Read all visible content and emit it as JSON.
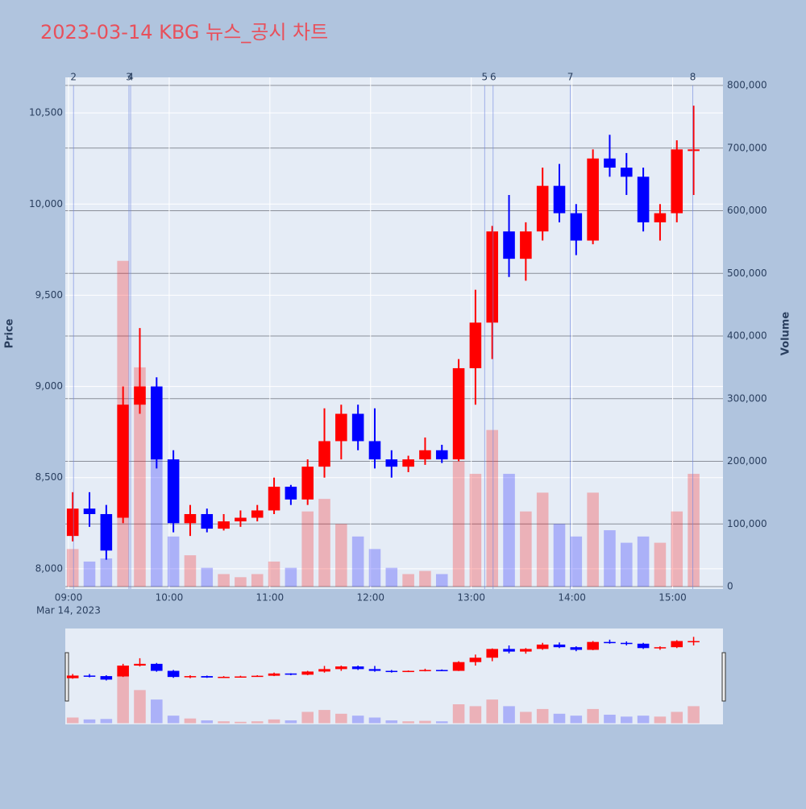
{
  "chart_data": {
    "type": "candlestick",
    "title": "2023-03-14 KBG 뉴스_공시 차트",
    "y_label": "Price",
    "y2_label": "Volume",
    "x_date_label": "Mar 14, 2023",
    "up_color": "#ff0000",
    "down_color": "#0000ff",
    "x": [
      "09:00",
      "09:10",
      "09:20",
      "09:30",
      "09:40",
      "09:50",
      "10:00",
      "10:10",
      "10:20",
      "10:30",
      "10:40",
      "10:50",
      "11:00",
      "11:10",
      "11:20",
      "11:30",
      "11:40",
      "11:50",
      "12:00",
      "12:10",
      "12:20",
      "12:30",
      "12:40",
      "12:50",
      "13:00",
      "13:10",
      "13:20",
      "13:30",
      "13:40",
      "13:50",
      "14:00",
      "14:10",
      "14:20",
      "14:30",
      "14:40",
      "14:50",
      "15:00",
      "15:10"
    ],
    "open": [
      8180,
      8330,
      8300,
      8280,
      8900,
      9000,
      8600,
      8250,
      8300,
      8220,
      8260,
      8280,
      8320,
      8450,
      8380,
      8560,
      8700,
      8850,
      8700,
      8600,
      8560,
      8600,
      8650,
      8600,
      9100,
      9350,
      9850,
      9700,
      9850,
      10100,
      9950,
      9800,
      10250,
      10200,
      10150,
      9900,
      9950,
      10300
    ],
    "high": [
      8420,
      8420,
      8350,
      9000,
      9320,
      9050,
      8650,
      8350,
      8330,
      8300,
      8320,
      8350,
      8500,
      8460,
      8600,
      8880,
      8900,
      8900,
      8880,
      8650,
      8620,
      8720,
      8680,
      9150,
      9530,
      9880,
      10050,
      9900,
      10200,
      10220,
      10000,
      10300,
      10380,
      10280,
      10200,
      10000,
      10350,
      10540
    ],
    "low": [
      8150,
      8230,
      8050,
      8250,
      8850,
      8550,
      8200,
      8180,
      8200,
      8210,
      8230,
      8260,
      8300,
      8350,
      8350,
      8500,
      8600,
      8650,
      8550,
      8500,
      8530,
      8570,
      8580,
      8590,
      8900,
      9150,
      9600,
      9580,
      9800,
      9900,
      9720,
      9780,
      10150,
      10050,
      9850,
      9800,
      9900,
      10050
    ],
    "close": [
      8330,
      8300,
      8100,
      8900,
      9000,
      8600,
      8250,
      8300,
      8220,
      8260,
      8280,
      8320,
      8450,
      8380,
      8560,
      8700,
      8850,
      8700,
      8600,
      8560,
      8600,
      8650,
      8600,
      9100,
      9350,
      9850,
      9700,
      9850,
      10100,
      9950,
      9800,
      10250,
      10200,
      10150,
      9900,
      9950,
      10300,
      10300
    ],
    "volume": [
      60000,
      40000,
      45000,
      520000,
      350000,
      250000,
      80000,
      50000,
      30000,
      20000,
      15000,
      20000,
      40000,
      30000,
      120000,
      140000,
      100000,
      80000,
      60000,
      30000,
      20000,
      25000,
      20000,
      200000,
      180000,
      250000,
      180000,
      120000,
      150000,
      100000,
      80000,
      150000,
      90000,
      70000,
      80000,
      70000,
      120000,
      180000
    ],
    "xlim": [
      "09:00",
      "15:30"
    ],
    "xticks": [
      "09:00",
      "10:00",
      "11:00",
      "12:00",
      "13:00",
      "14:00",
      "15:00"
    ],
    "ylim": [
      7889,
      10695
    ],
    "yticks": [
      {
        "value": 8000,
        "label": "8,000"
      },
      {
        "value": 8500,
        "label": "8,500"
      },
      {
        "value": 9000,
        "label": "9,000"
      },
      {
        "value": 9500,
        "label": "9,500"
      },
      {
        "value": 10000,
        "label": "10,000"
      },
      {
        "value": 10500,
        "label": "10,500"
      }
    ],
    "y2lim": [
      -3860,
      812900
    ],
    "y2ticks": [
      0,
      {
        "value": 100000,
        "label": "100,000"
      },
      {
        "value": 200000,
        "label": "200,000"
      },
      {
        "value": 300000,
        "label": "300,000"
      },
      {
        "value": 400000,
        "label": "400,000"
      },
      {
        "value": 500000,
        "label": "500,000"
      },
      {
        "value": 600000,
        "label": "600,000"
      },
      {
        "value": 700000,
        "label": "700,000"
      },
      {
        "value": 800000,
        "label": "800,000"
      }
    ],
    "events": [
      {
        "time": "09:03",
        "label": "2"
      },
      {
        "time": "09:36",
        "label": "3"
      },
      {
        "time": "09:37",
        "label": "4"
      },
      {
        "time": "13:08",
        "label": "5"
      },
      {
        "time": "13:13",
        "label": "6"
      },
      {
        "time": "13:59",
        "label": "7"
      },
      {
        "time": "15:12",
        "label": "8"
      }
    ],
    "grid": true,
    "range_slider": true
  }
}
